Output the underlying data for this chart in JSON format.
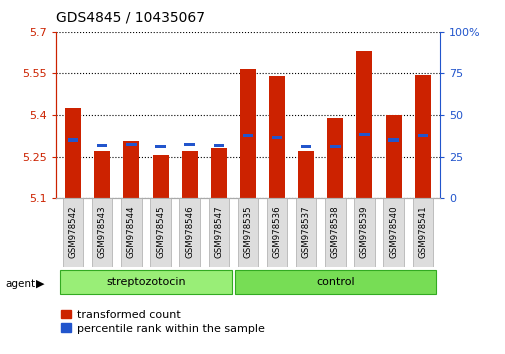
{
  "title": "GDS4845 / 10435067",
  "samples": [
    "GSM978542",
    "GSM978543",
    "GSM978544",
    "GSM978545",
    "GSM978546",
    "GSM978547",
    "GSM978535",
    "GSM978536",
    "GSM978537",
    "GSM978538",
    "GSM978539",
    "GSM978540",
    "GSM978541"
  ],
  "red_values": [
    5.425,
    5.27,
    5.305,
    5.255,
    5.27,
    5.28,
    5.565,
    5.54,
    5.27,
    5.39,
    5.63,
    5.4,
    5.545
  ],
  "blue_values": [
    5.31,
    5.29,
    5.295,
    5.285,
    5.295,
    5.29,
    5.325,
    5.32,
    5.285,
    5.285,
    5.33,
    5.31,
    5.325
  ],
  "groups": [
    "streptozotocin",
    "streptozotocin",
    "streptozotocin",
    "streptozotocin",
    "streptozotocin",
    "streptozotocin",
    "control",
    "control",
    "control",
    "control",
    "control",
    "control",
    "control"
  ],
  "ymin": 5.1,
  "ymax": 5.7,
  "yticks_left": [
    5.1,
    5.25,
    5.4,
    5.55,
    5.7
  ],
  "yticks_right": [
    0,
    25,
    50,
    75,
    100
  ],
  "bar_color_red": "#cc2200",
  "bar_color_blue": "#2255cc",
  "group_color_strep": "#99ee77",
  "group_color_ctrl": "#77dd55",
  "agent_label": "agent",
  "legend_red": "transformed count",
  "legend_blue": "percentile rank within the sample",
  "bar_width": 0.55,
  "title_fontsize": 10,
  "tick_fontsize": 8,
  "legend_fontsize": 8
}
